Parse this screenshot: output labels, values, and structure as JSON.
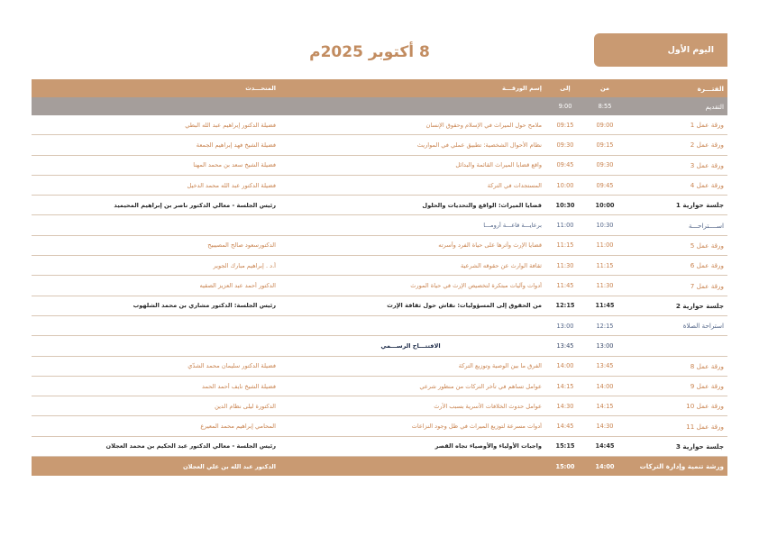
{
  "day_label": "اليوم الأول",
  "title": "8 أكتوبر 2025م",
  "headers": {
    "session": "الفتـــرة",
    "from": "من",
    "to": "إلى",
    "paper": "إسم الورقـــة",
    "speaker": "المتحـــدث"
  },
  "rows": [
    {
      "session": "التقديم",
      "from": "8:55",
      "to": "9:00",
      "paper": "",
      "speaker": ""
    },
    {
      "session": "ورقة عمل 1",
      "from": "09:00",
      "to": "09:15",
      "paper": "ملامح حول الميراث في الإسلام وحقوق الإنسان",
      "speaker": "فضيلة الدكتور إبراهيم عبد الله البطي"
    },
    {
      "session": "ورقة عمل 2",
      "from": "09:15",
      "to": "09:30",
      "paper": "نظام الأحوال الشخصية: تطبيق عملي في المواريث",
      "speaker": "فضيلة الشيخ فهد إبراهيم الجمعة"
    },
    {
      "session": "ورقة عمل 3",
      "from": "09:30",
      "to": "09:45",
      "paper": "واقع قضايا الميراث القائمة والبدائل",
      "speaker": "فضيلة الشيخ سعد بن محمد المهنا"
    },
    {
      "session": "ورقة عمل 4",
      "from": "09:45",
      "to": "10:00",
      "paper": "المستجدات في التركة",
      "speaker": "فضيلة الدكتور عبد الله محمد الدخيل"
    },
    {
      "session": "جلسة حوارية 1",
      "from": "10:00",
      "to": "10:30",
      "paper": "قضايا الميراث: الواقع والتحديات والحلول",
      "speaker": "رئيس الجلسة - معالي الدكتور ناصر بن إبراهيم المحيميد"
    },
    {
      "session": "اســــتراحـــة",
      "from": "10:30",
      "to": "11:00",
      "paper": "برعايـــة قاعـــة أرومـــا",
      "speaker": ""
    },
    {
      "session": "ورقة عمل 5",
      "from": "11:00",
      "to": "11:15",
      "paper": "قضايا الإرث وأثرها على حياة الفرد وأسرته",
      "speaker": "الدكتورسعود صالح المصيبيح"
    },
    {
      "session": "ورقة عمل 6",
      "from": "11:15",
      "to": "11:30",
      "paper": "ثقافة الوارث عن حقوقه الشرعية",
      "speaker": "أ.د . إبراهيم مبارك الجوير"
    },
    {
      "session": "ورقة عمل 7",
      "from": "11:30",
      "to": "11:45",
      "paper": "أدوات وآليات مبتكرة لتخصيص الإرث في حياة المورث",
      "speaker": "الدكتور أحمد عبد العزيز الصقيه"
    },
    {
      "session": "جلسة حوارية 2",
      "from": "11:45",
      "to": "12:15",
      "paper": "من الحقوق إلى المسؤوليات: نقاش حول ثقافة الإرث",
      "speaker": "رئيس الجلسة: الدكتور مشاري بن محمد الشلهوب"
    },
    {
      "session": "استراحة الصلاة",
      "from": "12:15",
      "to": "13:00",
      "paper": "",
      "speaker": ""
    },
    {
      "session": "",
      "from": "13:00",
      "to": "13:45",
      "paper": "الافتتـــاح الرســـمي",
      "speaker": ""
    },
    {
      "session": "ورقة عمل 8",
      "from": "13:45",
      "to": "14:00",
      "paper": "الفرق ما بين الوصية وتوزيع التركة",
      "speaker": "فضيلة الدكتور سليمان محمد الشدّي"
    },
    {
      "session": "ورقة عمل 9",
      "from": "14:00",
      "to": "14:15",
      "paper": "عوامل تساهم في تأخر التركات من منظور شرعي",
      "speaker": "فضيلة الشيخ نايف أحمد الحمد"
    },
    {
      "session": "ورقة عمل 10",
      "from": "14:15",
      "to": "14:30",
      "paper": "عوامل حدوث الخلافات الأسرية بسبب الأرث",
      "speaker": "الدكتورة ليلى نظام الدين"
    },
    {
      "session": "ورقة عمل 11",
      "from": "14:30",
      "to": "14:45",
      "paper": "أدوات مسرعة لتوزيع الميراث في ظل وجود النزاعات",
      "speaker": "المحامي إبراهيم محمد المعيرع"
    },
    {
      "session": "جلسة حوارية 3",
      "from": "14:45",
      "to": "15:15",
      "paper": "واجبات الأولياء والأوصياء تجاه القصر",
      "speaker": "رئيس الجلسة - معالي الدكتور عبد الحكيم بن محمد العجلان"
    },
    {
      "session": "ورشة تنمية وإدارة التركات",
      "from": "14:00",
      "to": "15:00",
      "paper": "",
      "speaker": "الدكتور عبد الله بن علي العجلان"
    }
  ]
}
